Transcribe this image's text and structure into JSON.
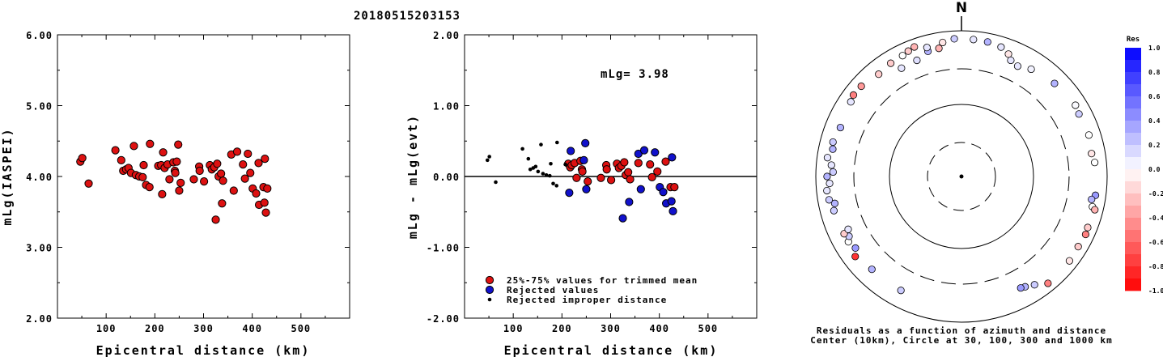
{
  "title": "20180515203153",
  "chart_data": [
    {
      "type": "scatter",
      "ylabel": "mLg(IASPEI)",
      "xlabel": "Epicentral distance (km)",
      "xlim": [
        0,
        600
      ],
      "ylim": [
        2.0,
        6.0
      ],
      "xticks": [
        "100",
        "200",
        "300",
        "400",
        "500"
      ],
      "yticks": [
        "2.00",
        "3.00",
        "4.00",
        "5.00",
        "6.00"
      ],
      "points": [
        [
          47,
          4.21
        ],
        [
          51,
          4.26
        ],
        [
          64,
          3.9
        ],
        [
          119,
          4.37
        ],
        [
          131,
          4.23
        ],
        [
          135,
          4.08
        ],
        [
          141,
          4.1
        ],
        [
          146,
          4.12
        ],
        [
          151,
          4.05
        ],
        [
          157,
          4.43
        ],
        [
          161,
          4.02
        ],
        [
          168,
          4.0
        ],
        [
          175,
          3.99
        ],
        [
          177,
          4.16
        ],
        [
          182,
          3.88
        ],
        [
          189,
          3.85
        ],
        [
          190,
          4.46
        ],
        [
          207,
          4.15
        ],
        [
          213,
          4.16
        ],
        [
          215,
          3.75
        ],
        [
          217,
          4.34
        ],
        [
          220,
          4.12
        ],
        [
          226,
          4.17
        ],
        [
          230,
          3.96
        ],
        [
          238,
          4.2
        ],
        [
          241,
          4.08
        ],
        [
          242,
          4.05
        ],
        [
          245,
          4.21
        ],
        [
          248,
          4.45
        ],
        [
          250,
          3.8
        ],
        [
          253,
          3.91
        ],
        [
          280,
          3.96
        ],
        [
          291,
          4.14
        ],
        [
          292,
          4.08
        ],
        [
          301,
          3.93
        ],
        [
          313,
          4.16
        ],
        [
          317,
          4.1
        ],
        [
          322,
          4.13
        ],
        [
          325,
          3.39
        ],
        [
          328,
          4.18
        ],
        [
          331,
          4.0
        ],
        [
          336,
          4.04
        ],
        [
          338,
          3.62
        ],
        [
          340,
          3.94
        ],
        [
          357,
          4.31
        ],
        [
          362,
          3.8
        ],
        [
          369,
          4.35
        ],
        [
          381,
          4.17
        ],
        [
          385,
          3.97
        ],
        [
          391,
          4.32
        ],
        [
          396,
          4.05
        ],
        [
          401,
          3.83
        ],
        [
          408,
          3.76
        ],
        [
          413,
          4.19
        ],
        [
          414,
          3.6
        ],
        [
          423,
          3.85
        ],
        [
          425,
          3.63
        ],
        [
          426,
          4.25
        ],
        [
          428,
          3.49
        ],
        [
          431,
          3.83
        ]
      ]
    },
    {
      "type": "scatter",
      "ylabel": "mLg - mLg(evt)",
      "xlabel": "Epicentral distance (km)",
      "xlim": [
        0,
        600
      ],
      "ylim": [
        -2.0,
        2.0
      ],
      "xticks": [
        "100",
        "200",
        "300",
        "400",
        "500"
      ],
      "yticks": [
        "-2.00",
        "-1.00",
        "0.00",
        "1.00",
        "2.00"
      ],
      "annotation": "mLg= 3.98",
      "legend": [
        {
          "label": "25%-75% values for trimmed mean",
          "color": "#dd1111",
          "marker": "large"
        },
        {
          "label": "Rejected values",
          "color": "#1111cc",
          "marker": "large"
        },
        {
          "label": "Rejected improper distance",
          "color": "#000000",
          "marker": "small"
        }
      ],
      "series": [
        {
          "name": "25%-75% values for trimmed mean",
          "color": "#dd1111",
          "points": [
            [
              213,
              0.18
            ],
            [
              217,
              0.13
            ],
            [
              220,
              0.16
            ],
            [
              226,
              0.19
            ],
            [
              230,
              -0.02
            ],
            [
              238,
              0.22
            ],
            [
              241,
              0.1
            ],
            [
              242,
              0.07
            ],
            [
              253,
              -0.07
            ],
            [
              280,
              -0.02
            ],
            [
              291,
              0.16
            ],
            [
              292,
              0.1
            ],
            [
              301,
              -0.05
            ],
            [
              313,
              0.18
            ],
            [
              317,
              0.12
            ],
            [
              322,
              0.15
            ],
            [
              328,
              0.2
            ],
            [
              331,
              0.02
            ],
            [
              336,
              0.06
            ],
            [
              340,
              -0.04
            ],
            [
              357,
              0.19
            ],
            [
              381,
              0.17
            ],
            [
              385,
              -0.01
            ],
            [
              396,
              0.07
            ],
            [
              413,
              0.21
            ],
            [
              423,
              -0.15
            ],
            [
              431,
              -0.15
            ]
          ]
        },
        {
          "name": "Rejected values",
          "color": "#1111cc",
          "points": [
            [
              215,
              -0.23
            ],
            [
              218,
              0.36
            ],
            [
              245,
              0.23
            ],
            [
              248,
              0.47
            ],
            [
              250,
              -0.18
            ],
            [
              325,
              -0.59
            ],
            [
              338,
              -0.36
            ],
            [
              357,
              0.32
            ],
            [
              362,
              -0.18
            ],
            [
              369,
              0.37
            ],
            [
              391,
              0.34
            ],
            [
              401,
              -0.15
            ],
            [
              408,
              -0.22
            ],
            [
              414,
              -0.38
            ],
            [
              425,
              -0.35
            ],
            [
              426,
              0.27
            ],
            [
              428,
              -0.49
            ]
          ]
        },
        {
          "name": "Rejected improper distance",
          "color": "#000000",
          "points": [
            [
              47,
              0.23
            ],
            [
              51,
              0.28
            ],
            [
              64,
              -0.08
            ],
            [
              119,
              0.39
            ],
            [
              131,
              0.25
            ],
            [
              135,
              0.1
            ],
            [
              141,
              0.12
            ],
            [
              146,
              0.14
            ],
            [
              151,
              0.07
            ],
            [
              157,
              0.45
            ],
            [
              161,
              0.04
            ],
            [
              168,
              0.02
            ],
            [
              175,
              0.01
            ],
            [
              177,
              0.18
            ],
            [
              182,
              -0.1
            ],
            [
              189,
              -0.13
            ],
            [
              190,
              0.48
            ],
            [
              207,
              0.17
            ]
          ]
        }
      ]
    },
    {
      "type": "scatter",
      "subtype": "polar",
      "north_label": "N",
      "caption_line1": "Residuals as a function of azimuth and distance",
      "caption_line2": "Center (10km), Circle at 30, 100, 300 and 1000 km",
      "rings_km": [
        30,
        100,
        300,
        1000
      ],
      "colorbar_title": "Res",
      "colorbar_ticks": [
        "1.0",
        "0.8",
        "0.6",
        "0.4",
        "0.2",
        "0.0",
        "-0.2",
        "-0.4",
        "-0.6",
        "-0.8",
        "-1.0"
      ],
      "stations": [
        [
          -29,
          500,
          0.1
        ],
        [
          -21,
          510,
          0.12
        ],
        [
          -15,
          600,
          0.3
        ],
        [
          -8,
          720,
          -0.1
        ],
        [
          -3,
          780,
          0.2
        ],
        [
          5,
          770,
          0.1
        ],
        [
          11,
          760,
          0.3
        ],
        [
          17,
          720,
          0.1
        ],
        [
          21,
          630,
          -0.1
        ],
        [
          23,
          540,
          0.1
        ],
        [
          27,
          500,
          0.1
        ],
        [
          33,
          570,
          0.05
        ],
        [
          45,
          640,
          0.3
        ],
        [
          58,
          700,
          0.02
        ],
        [
          62,
          670,
          0.2
        ],
        [
          72,
          690,
          0.0
        ],
        [
          80,
          650,
          -0.1
        ],
        [
          84,
          690,
          0.0
        ],
        [
          98,
          720,
          0.4
        ],
        [
          100,
          650,
          0.3
        ],
        [
          103,
          700,
          0.0
        ],
        [
          104,
          770,
          -0.3
        ],
        [
          112,
          740,
          -0.2
        ],
        [
          115,
          760,
          -0.5
        ],
        [
          121,
          740,
          -0.2
        ],
        [
          128,
          760,
          -0.1
        ],
        [
          141,
          770,
          -0.5
        ],
        [
          146,
          620,
          0.2
        ],
        [
          150,
          560,
          0.3
        ],
        [
          152,
          540,
          0.4
        ],
        [
          208,
          590,
          0.2
        ],
        [
          224,
          590,
          0.3
        ],
        [
          236,
          570,
          0.4
        ],
        [
          240,
          620,
          0.0
        ],
        [
          242,
          560,
          0.2
        ],
        [
          244,
          620,
          -0.2
        ],
        [
          245,
          520,
          0.1
        ],
        [
          255,
          650,
          0.2
        ],
        [
          258,
          600,
          0.3
        ],
        [
          260,
          700,
          0.2
        ],
        [
          264,
          720,
          0.1
        ],
        [
          267,
          650,
          0.1
        ],
        [
          270,
          700,
          0.3
        ],
        [
          272,
          580,
          0.2
        ],
        [
          275,
          620,
          0.1
        ],
        [
          278,
          720,
          0.1
        ],
        [
          282,
          640,
          0.3
        ],
        [
          285,
          670,
          0.2
        ],
        [
          292,
          620,
          0.3
        ],
        [
          304,
          680,
          0.1
        ],
        [
          307,
          720,
          -0.5
        ],
        [
          312,
          710,
          -0.4
        ],
        [
          321,
          640,
          -0.2
        ],
        [
          328,
          680,
          -0.2
        ],
        [
          334,
          700,
          0.0
        ],
        [
          337,
          740,
          -0.2
        ],
        [
          340,
          780,
          -0.3
        ],
        [
          345,
          680,
          0.1
        ],
        [
          350,
          610,
          -0.3
        ],
        [
          233,
          670,
          -0.8
        ]
      ]
    }
  ]
}
